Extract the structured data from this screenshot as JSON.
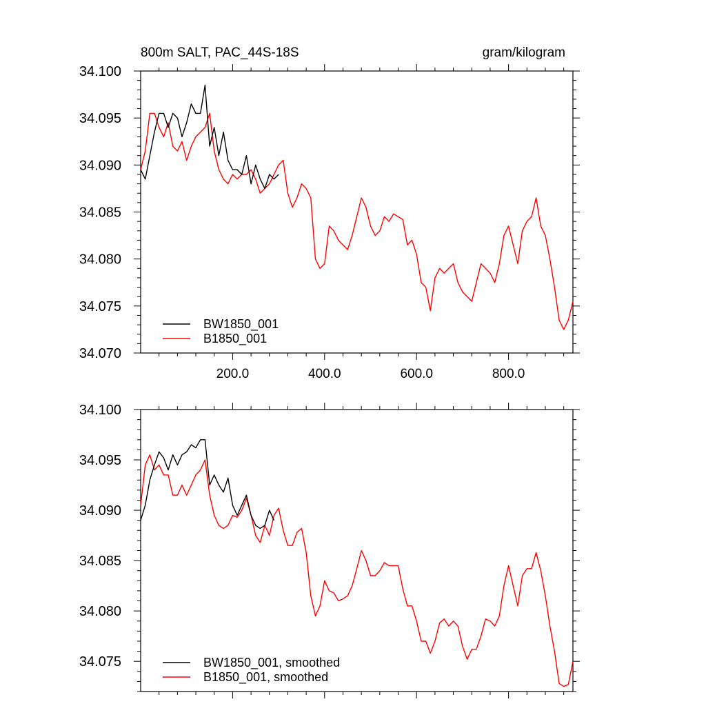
{
  "chart_data": [
    {
      "type": "line",
      "title": "800m SALT, PAC_44S-18S",
      "units": "gram/kilogram",
      "xlabel": "",
      "ylabel": "",
      "xlim": [
        0,
        940
      ],
      "ylim": [
        34.07,
        34.1
      ],
      "x_ticks": [
        200,
        400,
        600,
        800
      ],
      "x_tick_labels": [
        "200.0",
        "400.0",
        "600.0",
        "800.0"
      ],
      "y_ticks": [
        34.07,
        34.075,
        34.08,
        34.085,
        34.09,
        34.095,
        34.1
      ],
      "y_tick_labels": [
        "34.070",
        "34.075",
        "34.080",
        "34.085",
        "34.090",
        "34.095",
        "34.100"
      ],
      "legend_position": "bottom-left",
      "grid": false,
      "series": [
        {
          "name": "BW1850_001",
          "color": "#000000",
          "x": [
            0,
            10,
            20,
            30,
            40,
            50,
            60,
            70,
            80,
            90,
            100,
            110,
            120,
            130,
            140,
            150,
            160,
            170,
            180,
            190,
            200,
            210,
            220,
            230,
            240,
            250,
            260,
            270,
            280,
            290,
            300
          ],
          "y": [
            34.0895,
            34.0885,
            34.091,
            34.0935,
            34.0955,
            34.0955,
            34.094,
            34.0955,
            34.095,
            34.093,
            34.0945,
            34.0965,
            34.0955,
            34.0955,
            34.0985,
            34.092,
            34.094,
            34.091,
            34.0935,
            34.0905,
            34.0895,
            34.0895,
            34.089,
            34.091,
            34.088,
            34.09,
            34.0885,
            34.0875,
            34.089,
            34.0885,
            34.089
          ]
        },
        {
          "name": "B1850_001",
          "color": "#ff0000",
          "x": [
            0,
            10,
            20,
            30,
            40,
            50,
            60,
            70,
            80,
            90,
            100,
            110,
            120,
            130,
            140,
            150,
            160,
            170,
            180,
            190,
            200,
            210,
            220,
            230,
            240,
            250,
            260,
            270,
            280,
            290,
            300,
            310,
            320,
            330,
            340,
            350,
            360,
            370,
            380,
            390,
            400,
            410,
            420,
            430,
            440,
            450,
            460,
            470,
            480,
            490,
            500,
            510,
            520,
            530,
            540,
            550,
            560,
            570,
            580,
            590,
            600,
            610,
            620,
            630,
            640,
            650,
            660,
            670,
            680,
            690,
            700,
            710,
            720,
            730,
            740,
            750,
            760,
            770,
            780,
            790,
            800,
            810,
            820,
            830,
            840,
            850,
            860,
            870,
            880,
            890,
            900,
            910,
            920,
            930,
            940
          ],
          "y": [
            34.0895,
            34.0915,
            34.0955,
            34.0955,
            34.094,
            34.093,
            34.0945,
            34.092,
            34.0915,
            34.0925,
            34.0905,
            34.092,
            34.093,
            34.0935,
            34.094,
            34.0955,
            34.0915,
            34.0895,
            34.0885,
            34.088,
            34.089,
            34.0885,
            34.089,
            34.089,
            34.0895,
            34.0885,
            34.087,
            34.0875,
            34.088,
            34.089,
            34.09,
            34.0905,
            34.087,
            34.0855,
            34.0865,
            34.088,
            34.0875,
            34.0865,
            34.08,
            34.079,
            34.0795,
            34.0835,
            34.083,
            34.082,
            34.0815,
            34.081,
            34.0825,
            34.0845,
            34.0865,
            34.0855,
            34.0835,
            34.0825,
            34.083,
            34.0845,
            34.084,
            34.0848,
            34.0845,
            34.0842,
            34.0815,
            34.082,
            34.0805,
            34.0775,
            34.077,
            34.0745,
            34.078,
            34.079,
            34.0785,
            34.079,
            34.0795,
            34.0775,
            34.0765,
            34.076,
            34.0755,
            34.0775,
            34.0795,
            34.079,
            34.0785,
            34.0775,
            34.0795,
            34.0825,
            34.0835,
            34.0815,
            34.0795,
            34.083,
            34.084,
            34.0845,
            34.0865,
            34.0835,
            34.0825,
            34.08,
            34.077,
            34.0735,
            34.0725,
            34.0735,
            34.0755
          ]
        }
      ]
    },
    {
      "type": "line",
      "title": "",
      "xlabel": "",
      "ylabel": "",
      "xlim": [
        0,
        940
      ],
      "ylim": [
        34.072,
        34.1
      ],
      "y_ticks": [
        34.075,
        34.08,
        34.085,
        34.09,
        34.095,
        34.1
      ],
      "y_tick_labels": [
        "34.075",
        "34.080",
        "34.085",
        "34.090",
        "34.095",
        "34.100"
      ],
      "legend_position": "bottom-left",
      "grid": false,
      "series": [
        {
          "name": "BW1850_001, smoothed",
          "color": "#000000",
          "x": [
            0,
            10,
            20,
            30,
            40,
            50,
            60,
            70,
            80,
            90,
            100,
            110,
            120,
            130,
            140,
            150,
            160,
            170,
            180,
            190,
            200,
            210,
            220,
            230,
            240,
            250,
            260,
            270,
            280,
            290
          ],
          "y": [
            34.089,
            34.0905,
            34.093,
            34.0945,
            34.0958,
            34.0952,
            34.094,
            34.0955,
            34.0945,
            34.0955,
            34.0958,
            34.0965,
            34.0962,
            34.097,
            34.097,
            34.0925,
            34.0935,
            34.0925,
            34.0918,
            34.0932,
            34.0905,
            34.0895,
            34.0905,
            34.0915,
            34.0895,
            34.0885,
            34.0882,
            34.0885,
            34.09,
            34.089
          ]
        },
        {
          "name": "B1850_001, smoothed",
          "color": "#ff0000",
          "x": [
            0,
            10,
            20,
            30,
            40,
            50,
            60,
            70,
            80,
            90,
            100,
            110,
            120,
            130,
            140,
            150,
            160,
            170,
            180,
            190,
            200,
            210,
            220,
            230,
            240,
            250,
            260,
            270,
            280,
            290,
            300,
            310,
            320,
            330,
            340,
            350,
            360,
            370,
            380,
            390,
            400,
            410,
            420,
            430,
            440,
            450,
            460,
            470,
            480,
            490,
            500,
            510,
            520,
            530,
            540,
            550,
            560,
            570,
            580,
            590,
            600,
            610,
            620,
            630,
            640,
            650,
            660,
            670,
            680,
            690,
            700,
            710,
            720,
            730,
            740,
            750,
            760,
            770,
            780,
            790,
            800,
            810,
            820,
            830,
            840,
            850,
            860,
            870,
            880,
            890,
            900,
            910,
            920,
            930,
            940
          ],
          "y": [
            34.0905,
            34.0945,
            34.0955,
            34.094,
            34.0945,
            34.0935,
            34.0935,
            34.0915,
            34.0915,
            34.0925,
            34.0915,
            34.0925,
            34.0935,
            34.094,
            34.095,
            34.0915,
            34.0895,
            34.0885,
            34.0882,
            34.0885,
            34.0895,
            34.0893,
            34.09,
            34.0912,
            34.0895,
            34.0875,
            34.0868,
            34.0885,
            34.0875,
            34.0895,
            34.0902,
            34.088,
            34.0865,
            34.0865,
            34.0878,
            34.0882,
            34.0858,
            34.0815,
            34.0795,
            34.0805,
            34.083,
            34.082,
            34.0818,
            34.081,
            34.0812,
            34.0815,
            34.0825,
            34.0842,
            34.086,
            34.085,
            34.0835,
            34.0835,
            34.084,
            34.0848,
            34.0845,
            34.0845,
            34.0845,
            34.0822,
            34.0805,
            34.0805,
            34.079,
            34.077,
            34.077,
            34.0758,
            34.077,
            34.0788,
            34.0792,
            34.0785,
            34.079,
            34.0785,
            34.0765,
            34.0752,
            34.0762,
            34.0762,
            34.0775,
            34.0792,
            34.079,
            34.0785,
            34.0795,
            34.0825,
            34.0845,
            34.0825,
            34.0805,
            34.0835,
            34.0842,
            34.0842,
            34.0858,
            34.084,
            34.0815,
            34.0785,
            34.076,
            34.0728,
            34.0725,
            34.0727,
            34.075
          ]
        }
      ]
    }
  ]
}
